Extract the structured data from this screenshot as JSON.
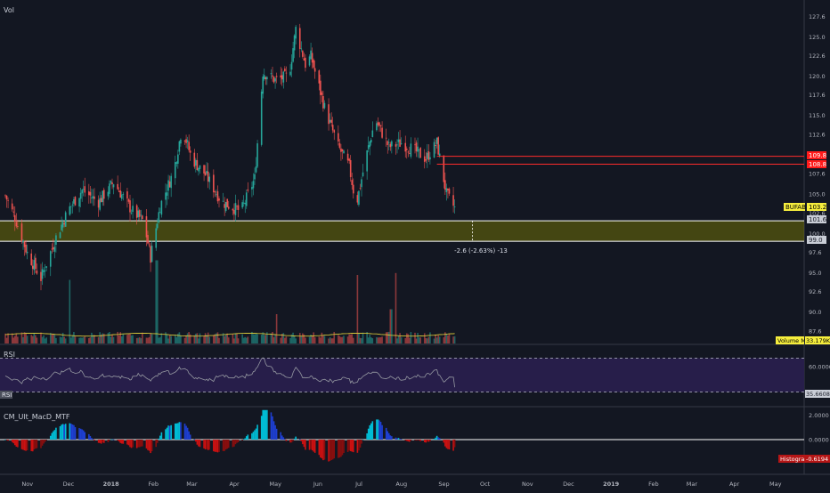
{
  "theme": {
    "background": "#131722",
    "up_color": "#26a69a",
    "down_color": "#ef5350",
    "zone_fill": "#808000",
    "rsi_band_fill": "#2a1f4f",
    "macd_rising_above": "#00bcd4",
    "macd_falling_above": "#1e3fd2",
    "macd_falling_below": "#cc1111",
    "macd_rising_below": "#880e0e",
    "volume_ma_color": "#d4c63a"
  },
  "labels": {
    "vol": "Vol",
    "rsi": "RSI",
    "rsi_tag": "RSI",
    "macd": "CM_Ult_MacD_MTF",
    "measure": "-2.6 (-2.63%) -13"
  },
  "price_tags": {
    "symbol": "BUFAB",
    "last": "103.2",
    "upper_red": "109.8",
    "lower_red": "108.8",
    "zone_top": "101.6",
    "zone_bottom": "99.0",
    "volume_ma_label": "Volume MA",
    "volume_ma_value": "33.179K",
    "rsi_value": "35.6608",
    "histogram_label": "Histogram",
    "histogram_value": "-0.6194"
  },
  "chart_data": [
    {
      "type": "candlestick",
      "symbol": "BUFAB",
      "y_axis_ticks": [
        "127.6",
        "125.0",
        "122.6",
        "120.0",
        "117.6",
        "115.0",
        "112.6",
        "110.0",
        "107.6",
        "105.0",
        "102.6",
        "100.0",
        "97.6",
        "95.0",
        "92.6",
        "90.0",
        "87.6"
      ],
      "ylim": [
        86,
        129
      ],
      "x_axis_ticks": [
        "Nov",
        "Dec",
        "2018",
        "Feb",
        "Mar",
        "Apr",
        "May",
        "Jun",
        "Jul",
        "Aug",
        "Sep",
        "Oct",
        "Nov",
        "Dec",
        "2019",
        "Feb",
        "Mar",
        "Apr",
        "May"
      ],
      "price_path": [
        {
          "date": "2017-10-25",
          "close": 104.8
        },
        {
          "date": "2017-11-01",
          "close": 102.0
        },
        {
          "date": "2017-11-10",
          "close": 97.5
        },
        {
          "date": "2017-11-20",
          "close": 94.3
        },
        {
          "date": "2017-12-01",
          "close": 99.5
        },
        {
          "date": "2017-12-10",
          "close": 103.0
        },
        {
          "date": "2017-12-20",
          "close": 105.5
        },
        {
          "date": "2018-01-01",
          "close": 104.0
        },
        {
          "date": "2018-01-12",
          "close": 106.5
        },
        {
          "date": "2018-01-25",
          "close": 103.0
        },
        {
          "date": "2018-02-03",
          "close": 101.5
        },
        {
          "date": "2018-02-08",
          "close": 97.0
        },
        {
          "date": "2018-02-15",
          "close": 103.5
        },
        {
          "date": "2018-02-25",
          "close": 108.0
        },
        {
          "date": "2018-03-03",
          "close": 113.5
        },
        {
          "date": "2018-03-10",
          "close": 109.5
        },
        {
          "date": "2018-03-20",
          "close": 107.5
        },
        {
          "date": "2018-04-01",
          "close": 104.0
        },
        {
          "date": "2018-04-15",
          "close": 102.8
        },
        {
          "date": "2018-04-25",
          "close": 107.0
        },
        {
          "date": "2018-05-01",
          "close": 120.5
        },
        {
          "date": "2018-05-10",
          "close": 119.5
        },
        {
          "date": "2018-05-20",
          "close": 120.0
        },
        {
          "date": "2018-05-25",
          "close": 126.0
        },
        {
          "date": "2018-06-01",
          "close": 121.5
        },
        {
          "date": "2018-06-05",
          "close": 122.5
        },
        {
          "date": "2018-06-15",
          "close": 116.0
        },
        {
          "date": "2018-06-25",
          "close": 111.0
        },
        {
          "date": "2018-07-03",
          "close": 108.5
        },
        {
          "date": "2018-07-08",
          "close": 103.5
        },
        {
          "date": "2018-07-15",
          "close": 109.5
        },
        {
          "date": "2018-07-22",
          "close": 114.5
        },
        {
          "date": "2018-08-01",
          "close": 111.0
        },
        {
          "date": "2018-08-10",
          "close": 111.5
        },
        {
          "date": "2018-08-20",
          "close": 110.5
        },
        {
          "date": "2018-08-28",
          "close": 109.5
        },
        {
          "date": "2018-09-05",
          "close": 111.5
        },
        {
          "date": "2018-09-12",
          "close": 105.0
        },
        {
          "date": "2018-09-18",
          "close": 103.2
        }
      ],
      "volume_spikes": [
        {
          "date": "2017-12-10",
          "level": 0.65
        },
        {
          "date": "2018-02-12",
          "level": 0.85
        },
        {
          "date": "2018-05-12",
          "level": 0.3
        },
        {
          "date": "2018-07-08",
          "level": 0.7
        },
        {
          "date": "2018-08-03",
          "level": 0.35
        },
        {
          "date": "2018-08-05",
          "level": 0.72
        }
      ],
      "horizontal_levels": [
        109.8,
        108.8
      ],
      "zone": [
        99.0,
        101.6
      ],
      "measurement": {
        "label": "-2.6 (-2.63%) -13"
      }
    },
    {
      "type": "line",
      "name": "RSI",
      "y_axis_ticks": [
        "60.0000"
      ],
      "ylim": [
        15,
        85
      ],
      "bands": [
        70,
        30
      ],
      "last": 35.6608
    },
    {
      "type": "histogram",
      "name": "CM_Ult_MacD_MTF",
      "y_axis_ticks": [
        "2.0000",
        "0.0000"
      ],
      "ylim": [
        -2.6,
        2.6
      ],
      "last": -0.6194
    }
  ]
}
